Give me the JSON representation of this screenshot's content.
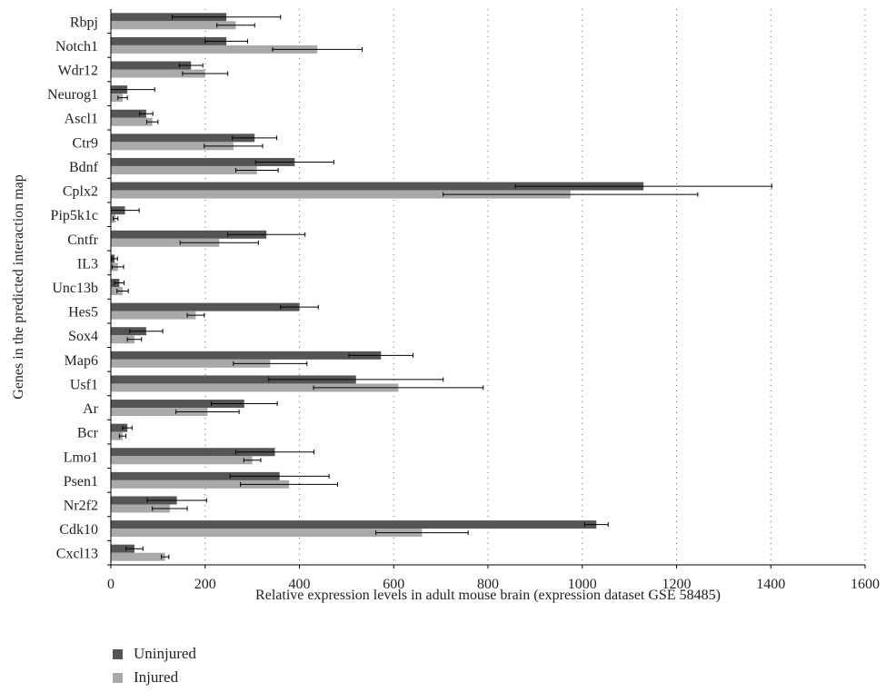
{
  "chart_data": {
    "type": "bar",
    "orientation": "horizontal",
    "xlabel": "Relative expression levels in adult mouse brain (expression dataset GSE 58485)",
    "ylabel": "Genes in the predicted interaction map",
    "xlim": [
      0,
      1600
    ],
    "xticks": [
      0,
      200,
      400,
      600,
      800,
      1000,
      1200,
      1400,
      1600
    ],
    "grid": "vertical dotted",
    "legend_position": "bottom-left",
    "categories": [
      "Rbpj",
      "Notch1",
      "Wdr12",
      "Neurog1",
      "Ascl1",
      "Ctr9",
      "Bdnf",
      "Cplx2",
      "Pip5k1c",
      "Cntfr",
      "IL3",
      "Unc13b",
      "Hes5",
      "Sox4",
      "Map6",
      "Usf1",
      "Ar",
      "Bcr",
      "Lmo1",
      "Psen1",
      "Nr2f2",
      "Cdk10",
      "Cxcl13"
    ],
    "series": [
      {
        "name": "Uninjured",
        "color": "#555555",
        "values": [
          245,
          245,
          170,
          35,
          75,
          305,
          390,
          1130,
          30,
          330,
          8,
          18,
          400,
          75,
          573,
          520,
          283,
          35,
          348,
          358,
          140,
          1030,
          50
        ],
        "errors": [
          115,
          45,
          25,
          58,
          14,
          47,
          83,
          272,
          30,
          82,
          6,
          10,
          40,
          35,
          68,
          185,
          70,
          10,
          83,
          105,
          63,
          25,
          18
        ]
      },
      {
        "name": "Injured",
        "color": "#a9a9a9",
        "values": [
          265,
          438,
          200,
          25,
          88,
          260,
          310,
          975,
          10,
          230,
          15,
          25,
          180,
          50,
          338,
          610,
          205,
          25,
          300,
          378,
          125,
          660,
          115
        ]
      }
    ],
    "injured_errors": [
      40,
      95,
      48,
      10,
      12,
      62,
      45,
      270,
      5,
      83,
      12,
      12,
      18,
      15,
      78,
      180,
      67,
      7,
      18,
      103,
      37,
      98,
      8
    ]
  }
}
